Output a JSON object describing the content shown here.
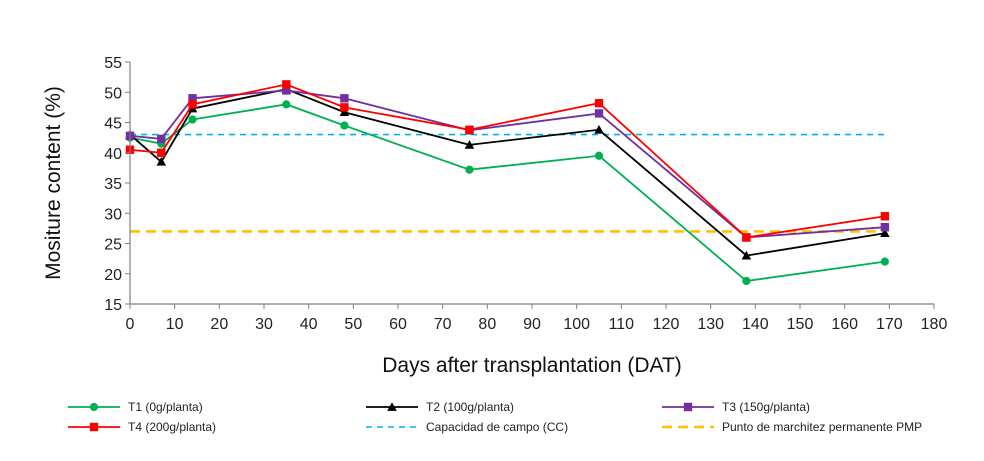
{
  "chart_data": {
    "type": "line",
    "title": "",
    "xlabel": "Days after transplantation (DAT)",
    "ylabel": "Mositure content (%)",
    "xlim": [
      0,
      180
    ],
    "ylim": [
      15,
      55
    ],
    "x_ticks": [
      0,
      10,
      20,
      30,
      40,
      50,
      60,
      70,
      80,
      90,
      100,
      110,
      120,
      130,
      140,
      150,
      160,
      170,
      180
    ],
    "y_ticks": [
      15,
      20,
      25,
      30,
      35,
      40,
      45,
      50,
      55
    ],
    "grid": false,
    "legend_position": "bottom",
    "x": [
      0,
      7,
      14,
      35,
      48,
      76,
      105,
      138,
      169
    ],
    "series": [
      {
        "name": "T1 (0g/planta)",
        "color": "#00b050",
        "marker": "circle",
        "values": [
          42.5,
          41.5,
          45.5,
          48.0,
          44.5,
          37.2,
          39.5,
          18.8,
          22.0
        ]
      },
      {
        "name": "T2 (100g/planta)",
        "color": "#000000",
        "marker": "triangle",
        "values": [
          43.0,
          38.5,
          47.3,
          50.5,
          46.7,
          41.3,
          43.8,
          23.0,
          26.7
        ]
      },
      {
        "name": "T3 (150g/planta)",
        "color": "#7030a0",
        "marker": "square",
        "values": [
          42.8,
          42.3,
          49.0,
          50.3,
          49.0,
          43.7,
          46.5,
          26.0,
          27.7
        ]
      },
      {
        "name": "T4 (200g/planta)",
        "color": "#ff0000",
        "marker": "square",
        "values": [
          40.5,
          40.0,
          48.0,
          51.3,
          47.5,
          43.8,
          48.2,
          26.0,
          29.5
        ]
      }
    ],
    "reference_lines": [
      {
        "name": "Capacidad de campo (CC)",
        "value": 43.0,
        "x_range": [
          0,
          169
        ],
        "color": "#00b0f0",
        "style": "dashed"
      },
      {
        "name": "Punto de marchitez permanente PMP",
        "value": 27.0,
        "x_range": [
          0,
          169
        ],
        "color": "#ffc000",
        "style": "dashed"
      }
    ]
  }
}
